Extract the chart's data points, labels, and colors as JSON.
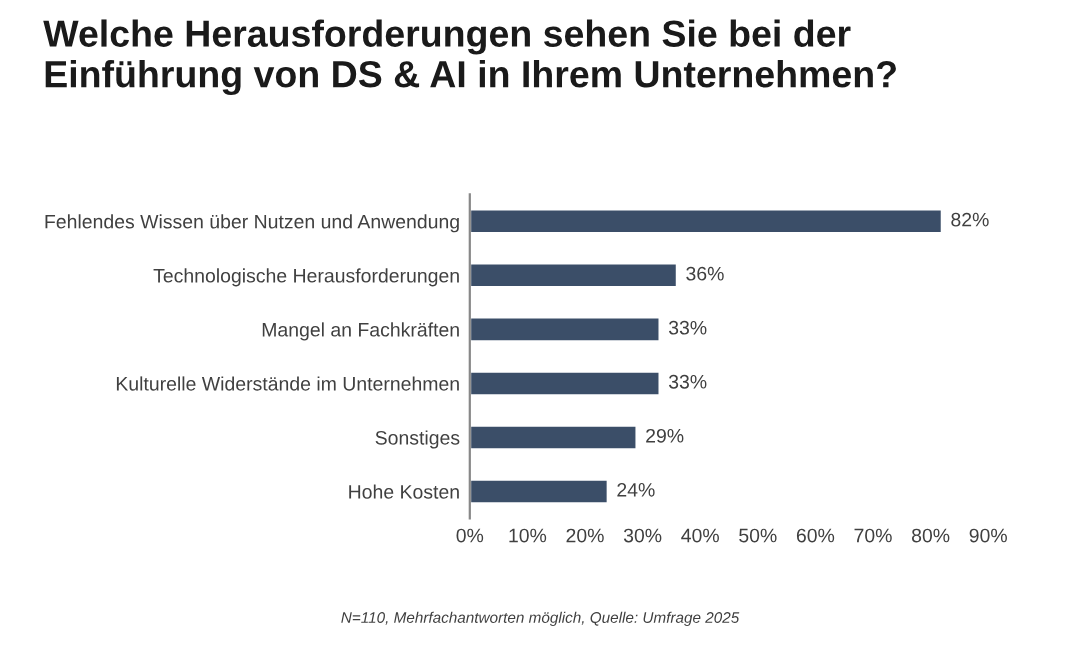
{
  "chart_data": {
    "type": "bar",
    "orientation": "horizontal",
    "title": "Welche Herausforderungen sehen Sie bei der\nEinführung von DS & AI in Ihrem Unternehmen?",
    "categories": [
      "Fehlendes Wissen über Nutzen und Anwendung",
      "Technologische Herausforderungen",
      "Mangel an Fachkräften",
      "Kulturelle Widerstände im Unternehmen",
      "Sonstiges",
      "Hohe Kosten"
    ],
    "values": [
      82,
      36,
      33,
      33,
      29,
      24
    ],
    "value_labels": [
      "82%",
      "36%",
      "33%",
      "33%",
      "29%",
      "24%"
    ],
    "color": "#3b4e68",
    "xlim": [
      0,
      90
    ],
    "xticks": [
      {
        "value": 0,
        "label": "0%"
      },
      {
        "value": 10,
        "label": "10%"
      },
      {
        "value": 20,
        "label": "20%"
      },
      {
        "value": 30,
        "label": "30%"
      },
      {
        "value": 40,
        "label": "40%"
      },
      {
        "value": 50,
        "label": "50%"
      },
      {
        "value": 60,
        "label": "60%"
      },
      {
        "value": 70,
        "label": "70%"
      },
      {
        "value": 80,
        "label": "80%"
      },
      {
        "value": 90,
        "label": "90%"
      }
    ],
    "grid": false,
    "annotations": [
      "N=110, Mehrfachantworten möglich, Quelle: Umfrage 2025"
    ]
  }
}
